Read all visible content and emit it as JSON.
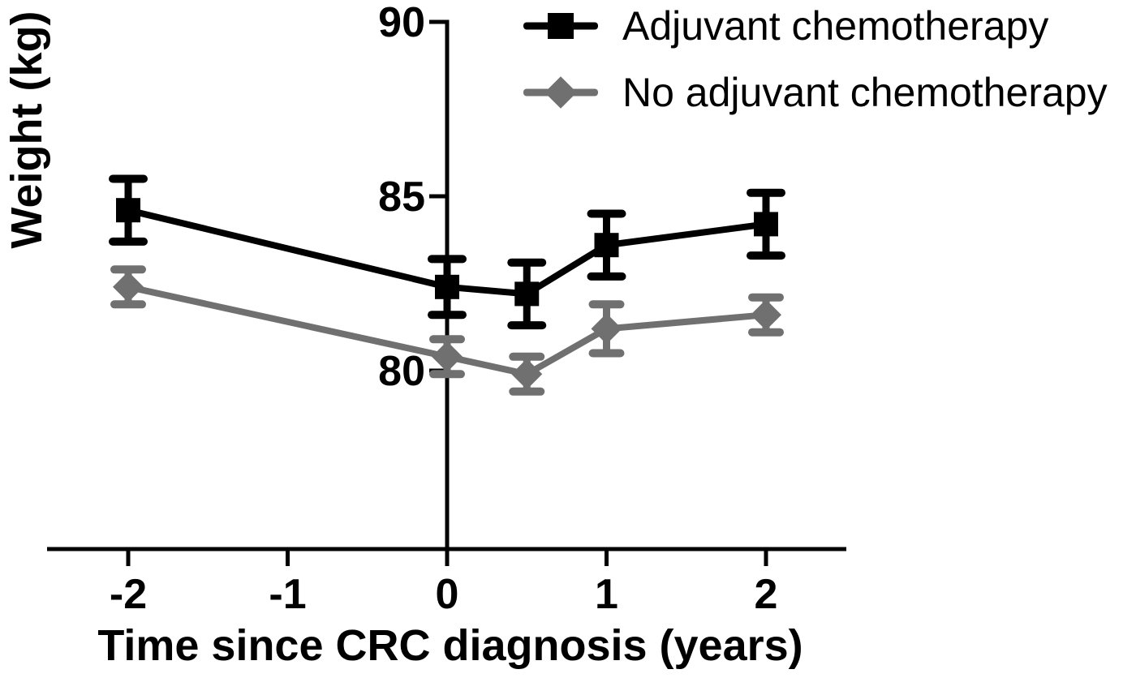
{
  "chart_data": {
    "type": "line",
    "title": "",
    "xlabel": "Time since CRC diagnosis (years)",
    "ylabel": "Weight (kg)",
    "grid": false,
    "error_bars": true,
    "legend_position": "top-right",
    "x": [
      -2,
      0,
      0.5,
      1,
      2
    ],
    "series": [
      {
        "name": "Adjuvant chemotherapy",
        "marker": "square",
        "color": "#000000",
        "values": [
          84.6,
          82.4,
          82.2,
          83.6,
          84.2
        ],
        "errors": [
          0.9,
          0.8,
          0.9,
          0.9,
          0.9
        ]
      },
      {
        "name": "No adjuvant chemotherapy",
        "marker": "diamond",
        "color": "#707070",
        "values": [
          82.4,
          80.4,
          79.9,
          81.2,
          81.6
        ],
        "errors": [
          0.5,
          0.5,
          0.5,
          0.7,
          0.5
        ]
      }
    ],
    "x_ticks": [
      -2,
      -1,
      0,
      1,
      2
    ],
    "x_tick_labels": [
      "-2",
      "-1",
      "0",
      "1",
      "2"
    ],
    "y_ticks": [
      90,
      85,
      80
    ],
    "y_tick_labels": [
      "90",
      "85",
      "80"
    ],
    "xlim": [
      -2.5,
      2.5
    ],
    "ylim": [
      74.9,
      90
    ]
  }
}
